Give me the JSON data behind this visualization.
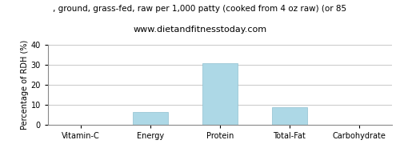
{
  "title_line1": ", ground, grass-fed, raw per 1,000 patty (cooked from 4 oz raw) (or 85",
  "title_line2": "www.dietandfitnesstoday.com",
  "categories": [
    "Vitamin-C",
    "Energy",
    "Protein",
    "Total-Fat",
    "Carbohydrate"
  ],
  "values": [
    0,
    6.5,
    31,
    9,
    0
  ],
  "bar_color": "#add8e6",
  "ylabel": "Percentage of RDH (%)",
  "ylim": [
    0,
    40
  ],
  "yticks": [
    0,
    10,
    20,
    30,
    40
  ],
  "background_color": "#ffffff",
  "grid_color": "#c8c8c8",
  "title1_fontsize": 7.5,
  "title2_fontsize": 8,
  "tick_fontsize": 7,
  "ylabel_fontsize": 7
}
